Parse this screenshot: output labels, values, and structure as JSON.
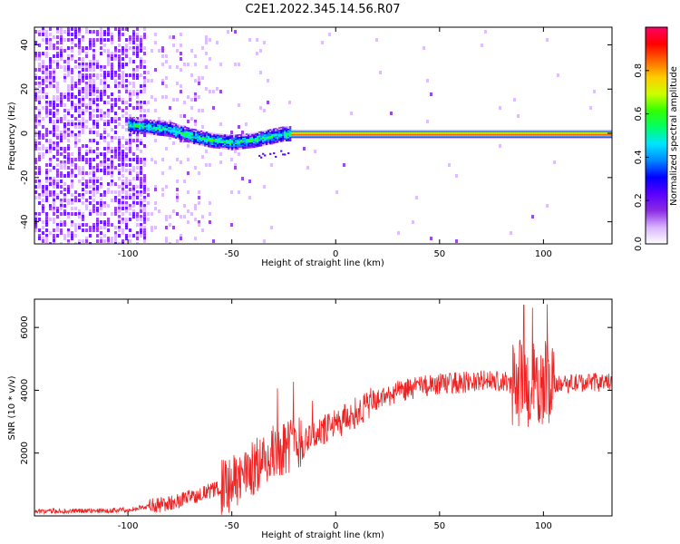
{
  "figure": {
    "title": "C2E1.2022.345.14.56.R07"
  },
  "chart_data": [
    {
      "type": "heatmap",
      "xlabel": "Height of straight line (km)",
      "ylabel": "Frequency (Hz)",
      "xlim": [
        -145,
        133
      ],
      "ylim": [
        -50,
        48
      ],
      "x_ticks": [
        -100,
        -50,
        0,
        50,
        100
      ],
      "y_ticks": [
        -40,
        -20,
        0,
        20,
        40
      ],
      "colorbar": {
        "label": "Normalized spectral amplitude",
        "range": [
          0,
          1
        ],
        "ticks": [
          "0.0",
          "0.2",
          "0.4",
          "0.6",
          "0.8"
        ],
        "colors": [
          "#ffffff",
          "#d9b3ff",
          "#8a2be2",
          "#5a00ff",
          "#0000ff",
          "#0088ff",
          "#00e5ff",
          "#00ff66",
          "#33ff00",
          "#ccff00",
          "#ffcc00",
          "#ff6600",
          "#ff0000",
          "#ff0066"
        ]
      },
      "ridge": {
        "x": [
          -100,
          -90,
          -80,
          -70,
          -60,
          -50,
          -40,
          -30,
          -25,
          -20,
          -10,
          0,
          20,
          50,
          80,
          100,
          133
        ],
        "frequency": [
          4,
          3,
          2,
          -1,
          -3,
          -4,
          -3,
          -1,
          0,
          0,
          0,
          0,
          0,
          0,
          0,
          0,
          0
        ]
      }
    },
    {
      "type": "line",
      "xlabel": "Height of straight line (km)",
      "ylabel": "SNR (10 * v/v)",
      "xlim": [
        -145,
        133
      ],
      "ylim": [
        0,
        6900
      ],
      "x_ticks": [
        -100,
        -50,
        0,
        50,
        100
      ],
      "y_ticks": [
        2000,
        4000,
        6000
      ],
      "series": [
        {
          "color": "#ee2222",
          "x": [
            -145,
            -130,
            -110,
            -100,
            -90,
            -80,
            -70,
            -60,
            -50,
            -40,
            -30,
            -25,
            -20,
            -10,
            0,
            10,
            20,
            30,
            40,
            50,
            60,
            70,
            80,
            90,
            95,
            100,
            105,
            110,
            120,
            133
          ],
          "values": [
            150,
            150,
            170,
            200,
            300,
            400,
            600,
            800,
            1000,
            1500,
            2000,
            2200,
            2300,
            2600,
            2900,
            3300,
            3700,
            3950,
            4100,
            4200,
            4250,
            4300,
            4250,
            4200,
            4100,
            4200,
            4250,
            4200,
            4250,
            4250
          ]
        }
      ]
    }
  ]
}
